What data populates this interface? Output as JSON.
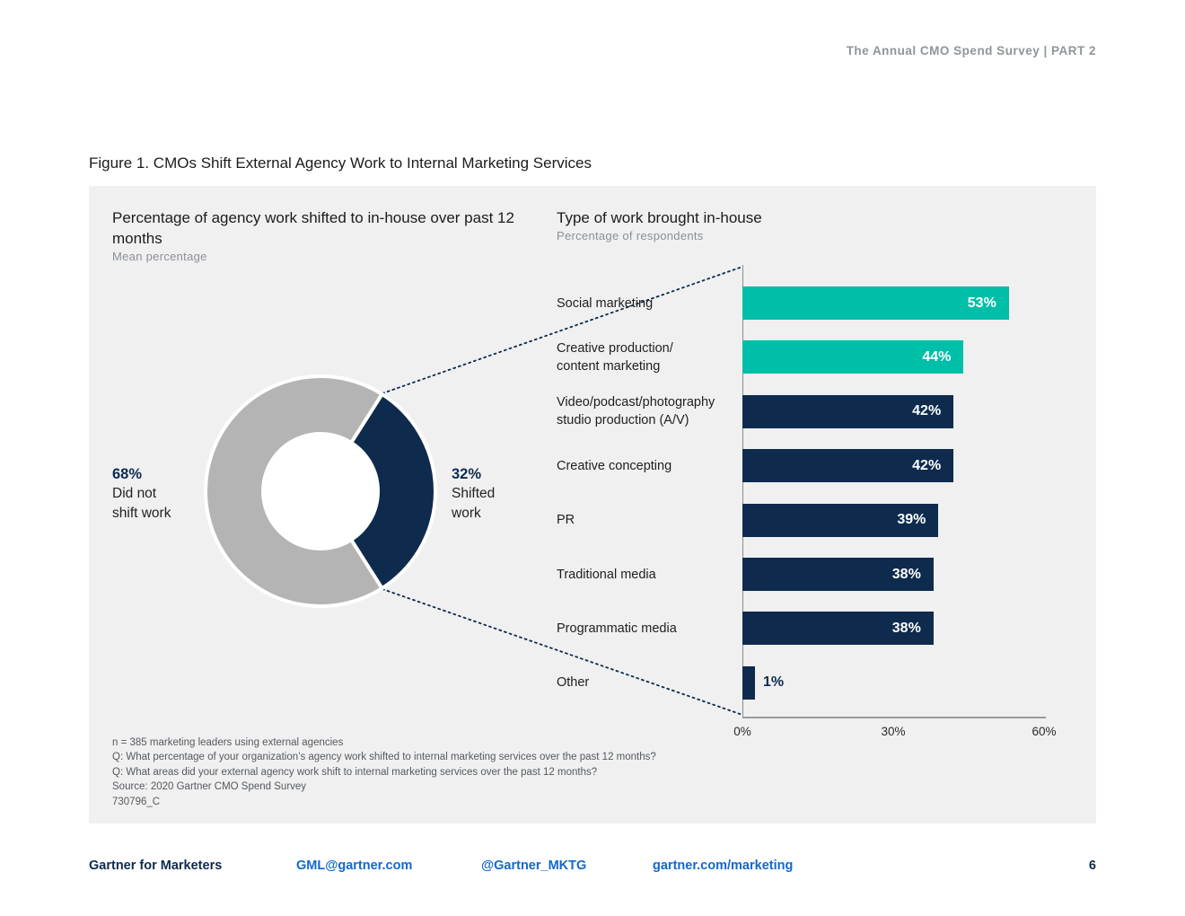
{
  "header": {
    "text": "The Annual CMO Spend Survey  |  PART 2"
  },
  "figure": {
    "title": "Figure 1. CMOs Shift External Agency Work to Internal Marketing Services"
  },
  "donut_chart": {
    "title": "Percentage of agency work shifted to in-house over past 12 months",
    "subtitle": "Mean percentage",
    "left_label": {
      "value": "68%",
      "text": "Did not\nshift work"
    },
    "right_label": {
      "value": "32%",
      "text": "Shifted\nwork"
    }
  },
  "bar_chart": {
    "title": "Type of work brought in-house",
    "subtitle": "Percentage of respondents",
    "x_ticks": [
      "0%",
      "30%",
      "60%"
    ]
  },
  "chart_data": [
    {
      "type": "pie",
      "title": "Percentage of agency work shifted to in-house over past 12 months",
      "subtitle": "Mean percentage",
      "start_angle": 147.6,
      "slices": [
        {
          "label": "Did not shift work",
          "value": 68,
          "color": "#b4b4b4"
        },
        {
          "label": "Shifted work",
          "value": 32,
          "color": "#0e2b4e"
        }
      ]
    },
    {
      "type": "bar",
      "orientation": "horizontal",
      "title": "Type of work brought in-house",
      "subtitle": "Percentage of respondents",
      "categories": [
        "Social marketing",
        "Creative production/\ncontent marketing",
        "Video/podcast/photography\nstudio production (A/V)",
        "Creative concepting",
        "PR",
        "Traditional media",
        "Programmatic media",
        "Other"
      ],
      "values": [
        53,
        44,
        42,
        42,
        39,
        38,
        38,
        1
      ],
      "colors": [
        "#00bfa8",
        "#00bfa8",
        "#0e2b4e",
        "#0e2b4e",
        "#0e2b4e",
        "#0e2b4e",
        "#0e2b4e",
        "#0e2b4e"
      ],
      "xlim": [
        0,
        60
      ],
      "x_ticks": [
        0,
        30,
        60
      ],
      "value_suffix": "%"
    }
  ],
  "notes": [
    "n = 385 marketing leaders using external agencies",
    "Q: What percentage of your organization’s agency work shifted to internal marketing services over the past 12 months?",
    "Q: What areas did your external agency work shift to internal marketing services over the past 12 months?",
    "Source: 2020 Gartner CMO Spend Survey",
    "730796_C"
  ],
  "footer": {
    "brand": "Gartner for Marketers",
    "email": "GML@gartner.com",
    "handle": "@Gartner_MKTG",
    "url": "gartner.com/marketing",
    "page": "6"
  },
  "colors": {
    "navy": "#0e2b4e",
    "teal": "#00bfa8",
    "donut_gray": "#b4b4b4",
    "link_blue": "#1268cd",
    "panel_bg": "#f0f0f0"
  }
}
